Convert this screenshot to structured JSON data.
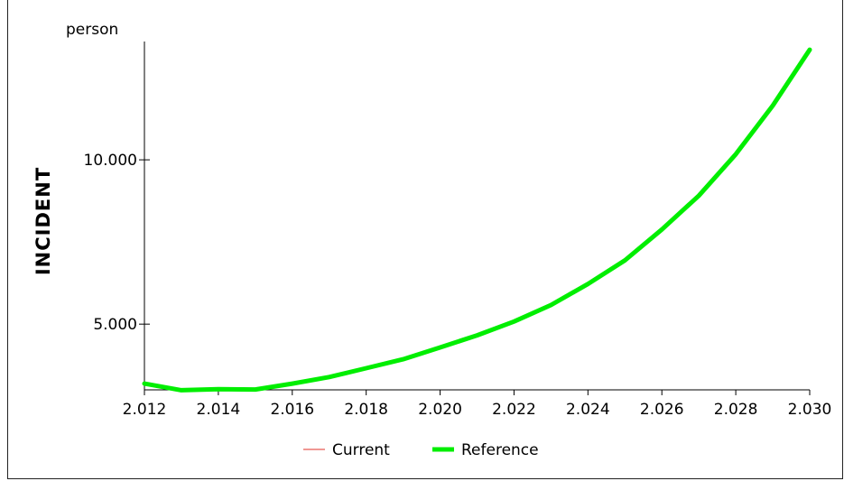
{
  "chart_data": {
    "type": "line",
    "title": "",
    "ylabel": "INCIDENT",
    "yunit": "person",
    "xlabel": "",
    "xlim": [
      2012,
      2030
    ],
    "ylim": [
      3000,
      13600
    ],
    "x_ticks": [
      2012,
      2014,
      2016,
      2018,
      2020,
      2022,
      2024,
      2026,
      2028,
      2030
    ],
    "x_tick_labels": [
      "2.012",
      "2.014",
      "2.016",
      "2.018",
      "2.020",
      "2.022",
      "2.024",
      "2.026",
      "2.028",
      "2.030"
    ],
    "y_ticks": [
      5000,
      10000
    ],
    "y_tick_labels": [
      "5.000",
      "10.000"
    ],
    "grid": false,
    "legend_position": "bottom",
    "x": [
      2012,
      2013,
      2014,
      2015,
      2016,
      2017,
      2018,
      2019,
      2020,
      2021,
      2022,
      2023,
      2024,
      2025,
      2026,
      2027,
      2028,
      2029,
      2030
    ],
    "series": [
      {
        "name": "Current",
        "color": "#e0302a",
        "line_width": 1,
        "values": [
          3190,
          2990,
          3020,
          3010,
          3190,
          3390,
          3660,
          3930,
          4290,
          4660,
          5080,
          5580,
          6220,
          6940,
          7880,
          8910,
          10170,
          11650,
          13350
        ]
      },
      {
        "name": "Reference",
        "color": "#00ee00",
        "line_width": 5,
        "values": [
          3190,
          2990,
          3020,
          3010,
          3190,
          3390,
          3660,
          3930,
          4290,
          4660,
          5080,
          5580,
          6220,
          6940,
          7880,
          8910,
          10170,
          11650,
          13350
        ]
      }
    ]
  }
}
